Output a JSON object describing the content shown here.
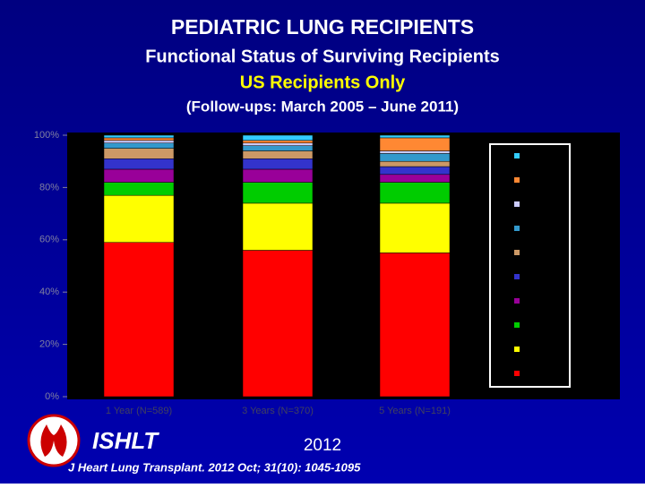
{
  "chart_data": {
    "type": "stacked-bar",
    "title": "PEDIATRIC LUNG RECIPIENTS",
    "subtitle": [
      "Functional Status of Surviving Recipients",
      "US Recipients Only"
    ],
    "note": "(Follow-ups: March 2005 – June 2011)",
    "logo_text": "ISHLT",
    "year": "2012",
    "citation": "J Heart Lung Transplant. 2012 Oct; 31(10): 1045-1095",
    "categories": [
      "1 Year (N=589)",
      "3 Years (N=370)",
      "5 Years (N=191)"
    ],
    "series": [
      {
        "color": "#ff0000",
        "values": [
          59,
          56,
          55
        ]
      },
      {
        "color": "#ffff00",
        "values": [
          18,
          18,
          19
        ]
      },
      {
        "color": "#00cc00",
        "values": [
          5,
          8,
          8
        ]
      },
      {
        "color": "#990099",
        "values": [
          5,
          5,
          3
        ]
      },
      {
        "color": "#3333cc",
        "values": [
          4,
          4,
          3
        ]
      },
      {
        "color": "#cc9966",
        "values": [
          4,
          3,
          2
        ]
      },
      {
        "color": "#3399cc",
        "values": [
          2,
          2,
          3
        ]
      },
      {
        "color": "#ccccff",
        "values": [
          1,
          1,
          1
        ]
      },
      {
        "color": "#ff8833",
        "values": [
          1,
          1,
          5
        ]
      },
      {
        "color": "#33ccff",
        "values": [
          1,
          2,
          1
        ]
      }
    ],
    "ylim": [
      0,
      100
    ],
    "yticks": [
      {
        "value": 0,
        "label": "0%"
      },
      {
        "value": 20,
        "label": "20%"
      },
      {
        "value": 40,
        "label": "40%"
      },
      {
        "value": 60,
        "label": "60%"
      },
      {
        "value": 80,
        "label": "80%"
      },
      {
        "value": 100,
        "label": "100%"
      }
    ]
  }
}
